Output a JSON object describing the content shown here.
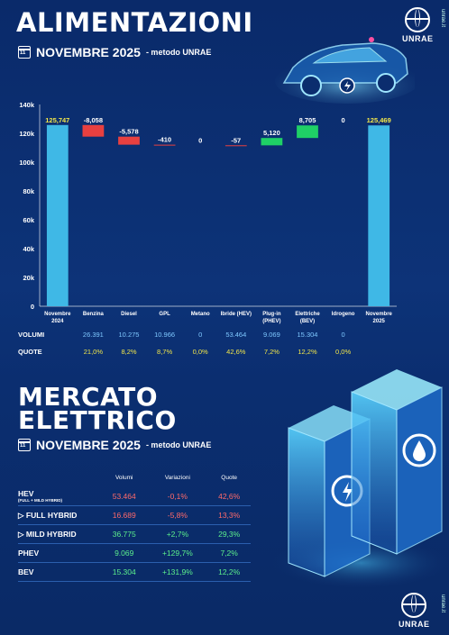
{
  "header": {
    "title": "ALIMENTAZIONI",
    "subtitle_main": "NOVEMBRE 2025",
    "subtitle_small": "- metodo UNRAE",
    "calendar_day": "11"
  },
  "logo": {
    "word": "UNRAE",
    "url": "unrae.it"
  },
  "chart_data": {
    "type": "waterfall",
    "categories": [
      "Novembre 2024",
      "Benzina",
      "Diesel",
      "GPL",
      "Metano",
      "Ibride (HEV)",
      "Plug-in (PHEV)",
      "Elettriche (BEV)",
      "Idrogeno",
      "Novembre 2025"
    ],
    "category_lines": [
      [
        "Novembre",
        "2024"
      ],
      [
        "Benzina"
      ],
      [
        "Diesel"
      ],
      [
        "GPL"
      ],
      [
        "Metano"
      ],
      [
        "Ibride (HEV)"
      ],
      [
        "Plug-in",
        "(PHEV)"
      ],
      [
        "Elettriche",
        "(BEV)"
      ],
      [
        "Idrogeno"
      ],
      [
        "Novembre",
        "2025"
      ]
    ],
    "values": [
      125747,
      -8058,
      -5578,
      -410,
      0,
      -57,
      5120,
      8705,
      0,
      125469
    ],
    "value_labels": [
      "125,747",
      "-8,058",
      "-5,578",
      "-410",
      "0",
      "-57",
      "5,120",
      "8,705",
      "0",
      "125,469"
    ],
    "bar_kind": [
      "total",
      "delta",
      "delta",
      "delta",
      "delta",
      "delta",
      "delta",
      "delta",
      "delta",
      "total"
    ],
    "y_ticks": [
      "0",
      "20k",
      "40k",
      "60k",
      "80k",
      "100k",
      "120k",
      "140k"
    ],
    "ylim": [
      0,
      140000
    ],
    "colors": {
      "total": "#3fb8e6",
      "negative": "#e84040",
      "positive": "#1fd066",
      "label_total": "#f2e64a"
    }
  },
  "rows": {
    "volumi_label": "VOLUMI",
    "volumi": [
      "26.391",
      "10.275",
      "10.966",
      "0",
      "53.464",
      "9.069",
      "15.304",
      "0"
    ],
    "quote_label": "QUOTE",
    "quote": [
      "21,0%",
      "8,2%",
      "8,7%",
      "0,0%",
      "42,6%",
      "7,2%",
      "12,2%",
      "0,0%"
    ]
  },
  "section2": {
    "title_line1": "MERCATO",
    "title_line2": "ELETTRICO",
    "subtitle_main": "NOVEMBRE 2025",
    "subtitle_small": "- metodo UNRAE",
    "calendar_day": "11"
  },
  "market_table": {
    "headers": [
      "Volumi",
      "Variazioni",
      "Quote"
    ],
    "rows": [
      {
        "label": "HEV",
        "sublabel": "(FULL + MILD HYBRID)",
        "volumi": "53.464",
        "variazione": "-0,1%",
        "quota": "42,6%",
        "color": "red"
      },
      {
        "label": "FULL HYBRID",
        "prefix": "▷",
        "volumi": "16.689",
        "variazione": "-5,8%",
        "quota": "13,3%",
        "color": "red"
      },
      {
        "label": "MILD HYBRID",
        "prefix": "▷",
        "volumi": "36.775",
        "variazione": "+2,7%",
        "quota": "29,3%",
        "color": "green"
      },
      {
        "label": "PHEV",
        "volumi": "9.069",
        "variazione": "+129,7%",
        "quota": "7,2%",
        "color": "green"
      },
      {
        "label": "BEV",
        "volumi": "15.304",
        "variazione": "+131,9%",
        "quota": "12,2%",
        "color": "green"
      }
    ]
  }
}
